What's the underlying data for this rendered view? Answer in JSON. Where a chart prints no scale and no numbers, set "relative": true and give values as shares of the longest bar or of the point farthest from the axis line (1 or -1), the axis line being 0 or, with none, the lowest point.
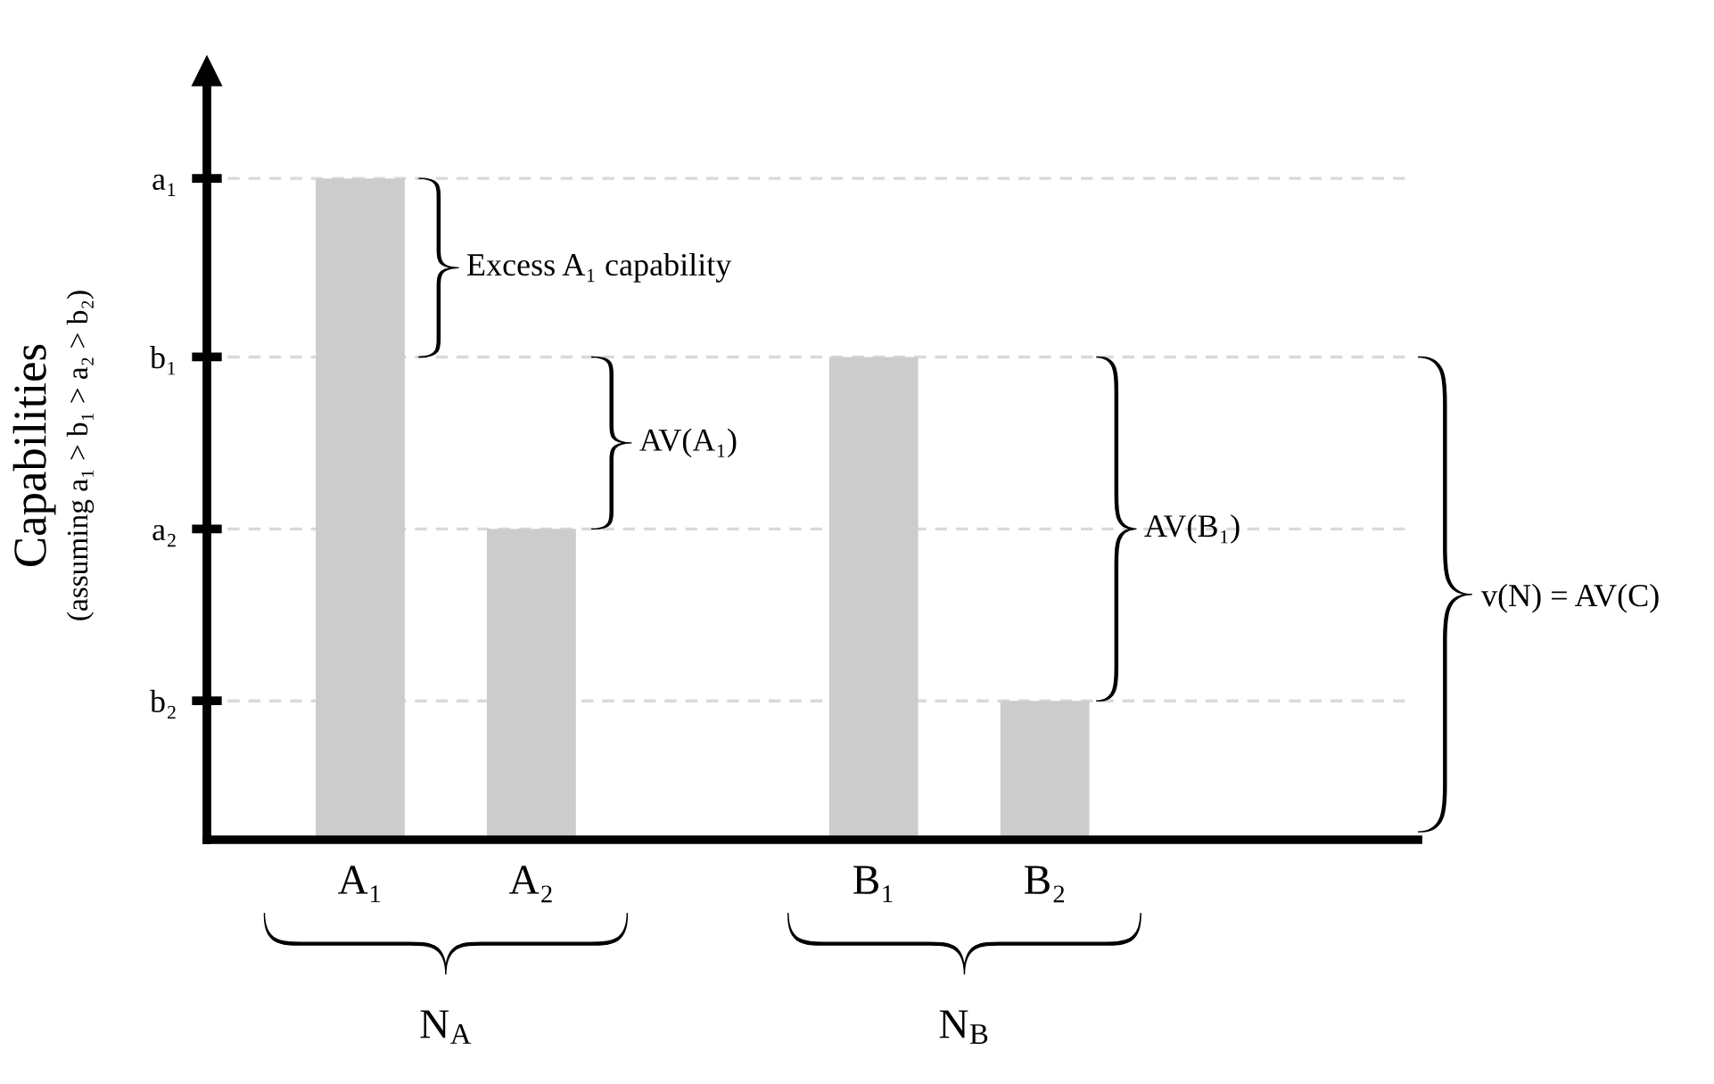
{
  "chart_data": {
    "type": "bar",
    "relative": true,
    "ylabel": "Capabilities",
    "categories": [
      "A₁",
      "A₂",
      null,
      "B₁",
      "B₂"
    ],
    "values": [
      1.0,
      0.47,
      null,
      0.73,
      0.21
    ],
    "color": "#cccccc",
    "grid": false,
    "ref_lines": [
      {
        "axis": "y",
        "value": 1.0,
        "label": "a₁",
        "color": "#d9d9d9",
        "line_style": "dashed"
      },
      {
        "axis": "y",
        "value": 0.73,
        "label": "b₁",
        "color": "#d9d9d9",
        "line_style": "dashed"
      },
      {
        "axis": "y",
        "value": 0.47,
        "label": "a₂",
        "color": "#d9d9d9",
        "line_style": "dashed"
      },
      {
        "axis": "y",
        "value": 0.21,
        "label": "b₂",
        "color": "#d9d9d9",
        "line_style": "dashed"
      }
    ],
    "annotations": [
      "(assuming a₁ > b₁ > a₂ > b₂)",
      "Excess A₁ capability",
      "AV(A₁)",
      "AV(B₁)",
      "v(N) = AV(C)",
      "N$_{A}$",
      "N$_{B}$"
    ]
  }
}
